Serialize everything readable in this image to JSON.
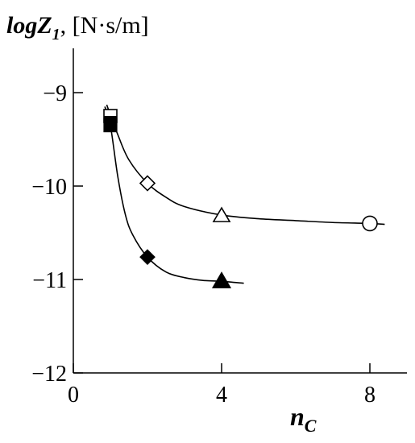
{
  "chart_data": {
    "type": "scatter",
    "title": "",
    "ylabel": {
      "main": "logZ",
      "subscript": "1",
      "unit": ", [N·s/m]"
    },
    "xlabel": {
      "main": "n",
      "subscript": "C"
    },
    "xlim": [
      0,
      9
    ],
    "ylim": [
      -12,
      -8.5
    ],
    "x_ticks": [
      0,
      4,
      8
    ],
    "x_tick_labels": [
      "0",
      "4",
      "8"
    ],
    "y_ticks": [
      -9,
      -10,
      -11,
      -12
    ],
    "y_tick_labels": [
      "−9",
      "−10",
      "−11",
      "−12"
    ],
    "grid": false,
    "series": [
      {
        "points": [
          {
            "x": 1,
            "y": -9.25,
            "marker": "half-filled-square"
          },
          {
            "x": 2,
            "y": -9.97,
            "marker": "open-diamond"
          },
          {
            "x": 4,
            "y": -10.32,
            "marker": "open-triangle"
          },
          {
            "x": 8,
            "y": -10.4,
            "marker": "open-circle"
          }
        ],
        "curve": [
          [
            0.9,
            -9.13
          ],
          [
            1.2,
            -9.45
          ],
          [
            1.5,
            -9.72
          ],
          [
            2,
            -9.97
          ],
          [
            2.5,
            -10.12
          ],
          [
            3,
            -10.22
          ],
          [
            4,
            -10.31
          ],
          [
            5,
            -10.35
          ],
          [
            6,
            -10.37
          ],
          [
            7,
            -10.39
          ],
          [
            8,
            -10.4
          ],
          [
            8.4,
            -10.41
          ]
        ]
      },
      {
        "points": [
          {
            "x": 1,
            "y": -9.35,
            "marker": "filled-square"
          },
          {
            "x": 2,
            "y": -10.76,
            "marker": "filled-diamond"
          },
          {
            "x": 4,
            "y": -11.02,
            "marker": "filled-triangle"
          }
        ],
        "curve": [
          [
            0.85,
            -9.15
          ],
          [
            1,
            -9.35
          ],
          [
            1.2,
            -9.9
          ],
          [
            1.4,
            -10.3
          ],
          [
            1.6,
            -10.52
          ],
          [
            2,
            -10.76
          ],
          [
            2.5,
            -10.92
          ],
          [
            3,
            -10.98
          ],
          [
            3.5,
            -11.01
          ],
          [
            4,
            -11.02
          ],
          [
            4.6,
            -11.04
          ]
        ]
      }
    ]
  }
}
